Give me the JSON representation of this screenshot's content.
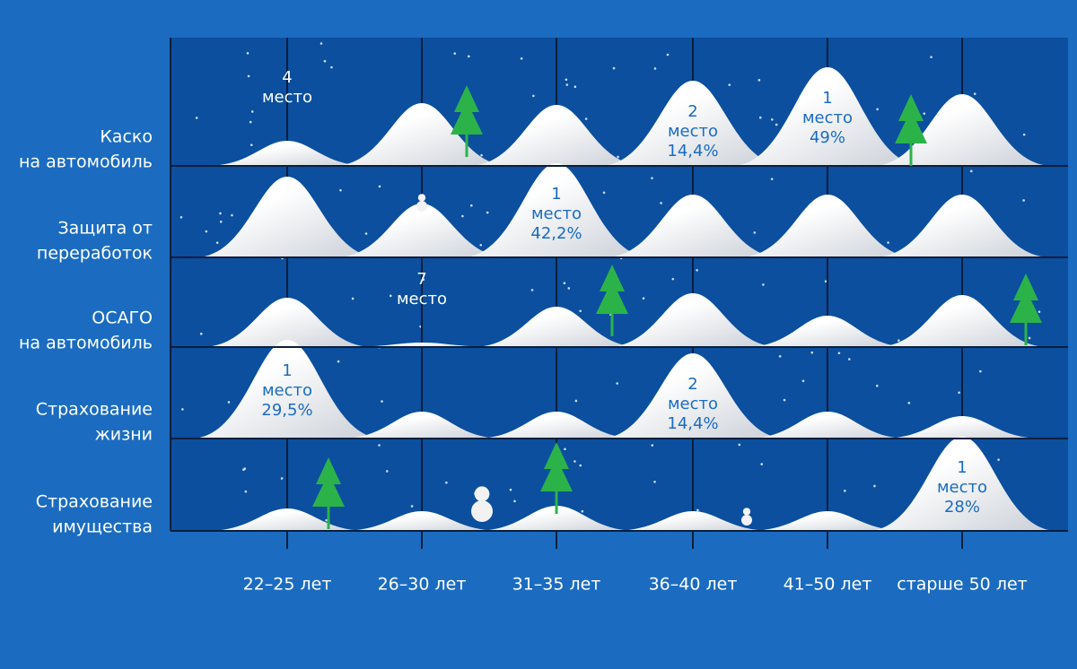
{
  "rows": [
    {
      "lines": [
        "Каско",
        "на автомобиль"
      ]
    },
    {
      "lines": [
        "Защита от",
        "переработок"
      ]
    },
    {
      "lines": [
        "ОСАГО",
        "на автомобиль"
      ]
    },
    {
      "lines": [
        "Страхование",
        "жизни"
      ]
    },
    {
      "lines": [
        "Страхование",
        "имущества"
      ]
    }
  ],
  "columns": [
    "22–25 лет",
    "26–30 лет",
    "31–35 лет",
    "36–40 лет",
    "41–50 лет",
    "старше 50 лет"
  ],
  "annotations": [
    {
      "row": 0,
      "col": 0,
      "lines": [
        "4",
        "место"
      ]
    },
    {
      "row": 0,
      "col": 3,
      "lines": [
        "2",
        "место",
        "14,4%"
      ]
    },
    {
      "row": 0,
      "col": 4,
      "lines": [
        "1",
        "место",
        "49%"
      ]
    },
    {
      "row": 1,
      "col": 2,
      "lines": [
        "1",
        "место",
        "42,2%"
      ]
    },
    {
      "row": 2,
      "col": 1,
      "lines": [
        "7",
        "место"
      ]
    },
    {
      "row": 3,
      "col": 0,
      "lines": [
        "1",
        "место",
        "29,5%"
      ]
    },
    {
      "row": 3,
      "col": 3,
      "lines": [
        "2",
        "место",
        "14,4%"
      ]
    },
    {
      "row": 4,
      "col": 5,
      "lines": [
        "1",
        "место",
        "28%"
      ]
    }
  ]
}
